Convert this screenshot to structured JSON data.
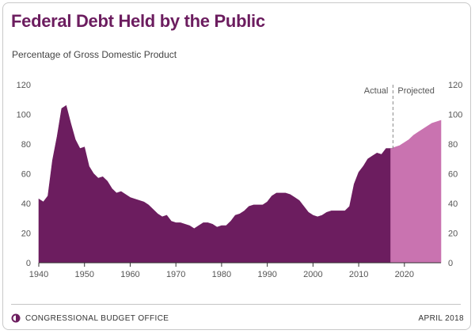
{
  "title": "Federal Debt Held by the Public",
  "footer": {
    "agency": "CONGRESSIONAL BUDGET OFFICE",
    "date": "APRIL 2018"
  },
  "colors": {
    "actual": "#6c1d5f",
    "projected": "#c973b0",
    "title": "#6c1d5f"
  },
  "chart_data": {
    "type": "area",
    "title": "Federal Debt Held by the Public",
    "subtitle": "Percentage of Gross Domestic Product",
    "xlim": [
      1940,
      2028
    ],
    "ylim": [
      0,
      120
    ],
    "x_ticks": [
      1940,
      1950,
      1960,
      1970,
      1980,
      1990,
      2000,
      2010,
      2020
    ],
    "y_ticks": [
      0,
      20,
      40,
      60,
      80,
      100,
      120
    ],
    "dual_y_axis": true,
    "divider_x": 2017.5,
    "annotations": [
      "Actual",
      "Projected"
    ],
    "series": [
      {
        "name": "Actual",
        "x": [
          1940,
          1941,
          1942,
          1943,
          1944,
          1945,
          1946,
          1947,
          1948,
          1949,
          1950,
          1951,
          1952,
          1953,
          1954,
          1955,
          1956,
          1957,
          1958,
          1959,
          1960,
          1961,
          1962,
          1963,
          1964,
          1965,
          1966,
          1967,
          1968,
          1969,
          1970,
          1971,
          1972,
          1973,
          1974,
          1975,
          1976,
          1977,
          1978,
          1979,
          1980,
          1981,
          1982,
          1983,
          1984,
          1985,
          1986,
          1987,
          1988,
          1989,
          1990,
          1991,
          1992,
          1993,
          1994,
          1995,
          1996,
          1997,
          1998,
          1999,
          2000,
          2001,
          2002,
          2003,
          2004,
          2005,
          2006,
          2007,
          2008,
          2009,
          2010,
          2011,
          2012,
          2013,
          2014,
          2015,
          2016,
          2017
        ],
        "values": [
          43,
          41,
          45,
          69,
          85,
          104,
          106,
          94,
          83,
          77,
          78,
          65,
          60,
          57,
          58,
          55,
          50,
          47,
          48,
          46,
          44,
          43,
          42,
          41,
          39,
          36,
          33,
          31,
          32,
          28,
          27,
          27,
          26,
          25,
          23,
          25,
          27,
          27,
          26,
          24,
          25,
          25,
          28,
          32,
          33,
          35,
          38,
          39,
          39,
          39,
          41,
          45,
          47,
          47,
          47,
          46,
          44,
          42,
          38,
          34,
          32,
          31,
          32,
          34,
          35,
          35,
          35,
          35,
          38,
          53,
          61,
          65,
          70,
          72,
          74,
          73,
          77,
          77
        ]
      },
      {
        "name": "Projected",
        "x": [
          2017,
          2018,
          2019,
          2020,
          2021,
          2022,
          2023,
          2024,
          2025,
          2026,
          2027,
          2028
        ],
        "values": [
          77,
          78,
          79,
          81,
          83,
          86,
          88,
          90,
          92,
          94,
          95,
          96
        ]
      }
    ]
  }
}
